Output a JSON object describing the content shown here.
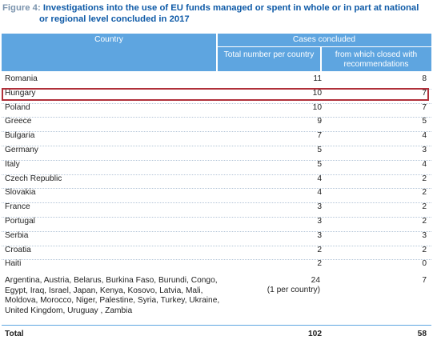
{
  "figure": {
    "label": "Figure 4:",
    "title_line1": "Investigations into the use of EU funds managed or spent in whole or in part at national",
    "title_line2": "or regional level concluded in 2017"
  },
  "table": {
    "col_country": "Country",
    "col_cases": "Cases concluded",
    "col_total": "Total number per country",
    "col_closed": "from which closed with recommendations",
    "rows": [
      {
        "country": "Romania",
        "total": "11",
        "closed": "8"
      },
      {
        "country": "Hungary",
        "total": "10",
        "closed": "7"
      },
      {
        "country": "Poland",
        "total": "10",
        "closed": "7"
      },
      {
        "country": "Greece",
        "total": "9",
        "closed": "5"
      },
      {
        "country": "Bulgaria",
        "total": "7",
        "closed": "4"
      },
      {
        "country": "Germany",
        "total": "5",
        "closed": "3"
      },
      {
        "country": "Italy",
        "total": "5",
        "closed": "4"
      },
      {
        "country": "Czech Republic",
        "total": "4",
        "closed": "2"
      },
      {
        "country": "Slovakia",
        "total": "4",
        "closed": "2"
      },
      {
        "country": "France",
        "total": "3",
        "closed": "2"
      },
      {
        "country": "Portugal",
        "total": "3",
        "closed": "2"
      },
      {
        "country": "Serbia",
        "total": "3",
        "closed": "3"
      },
      {
        "country": "Croatia",
        "total": "2",
        "closed": "2"
      },
      {
        "country": "Haiti",
        "total": "2",
        "closed": "0"
      }
    ],
    "multi_row": {
      "countries": "Argentina, Austria, Belarus, Burkina Faso, Burundi, Congo, Egypt, Iraq, Israel, Japan, Kenya, Kosovo, Latvia, Mali, Moldova, Morocco, Niger, Palestine, Syria, Turkey, Ukraine, United Kingdom, Uruguay , Zambia",
      "total": "24",
      "note": "(1 per country)",
      "closed": "7"
    },
    "total_row": {
      "label": "Total",
      "total": "102",
      "closed": "58"
    }
  },
  "highlighted_row": "Hungary",
  "colors": {
    "header_blue": "#5ea5e0",
    "title_blue": "#0e5aa7",
    "highlight_red": "#b0303a"
  }
}
